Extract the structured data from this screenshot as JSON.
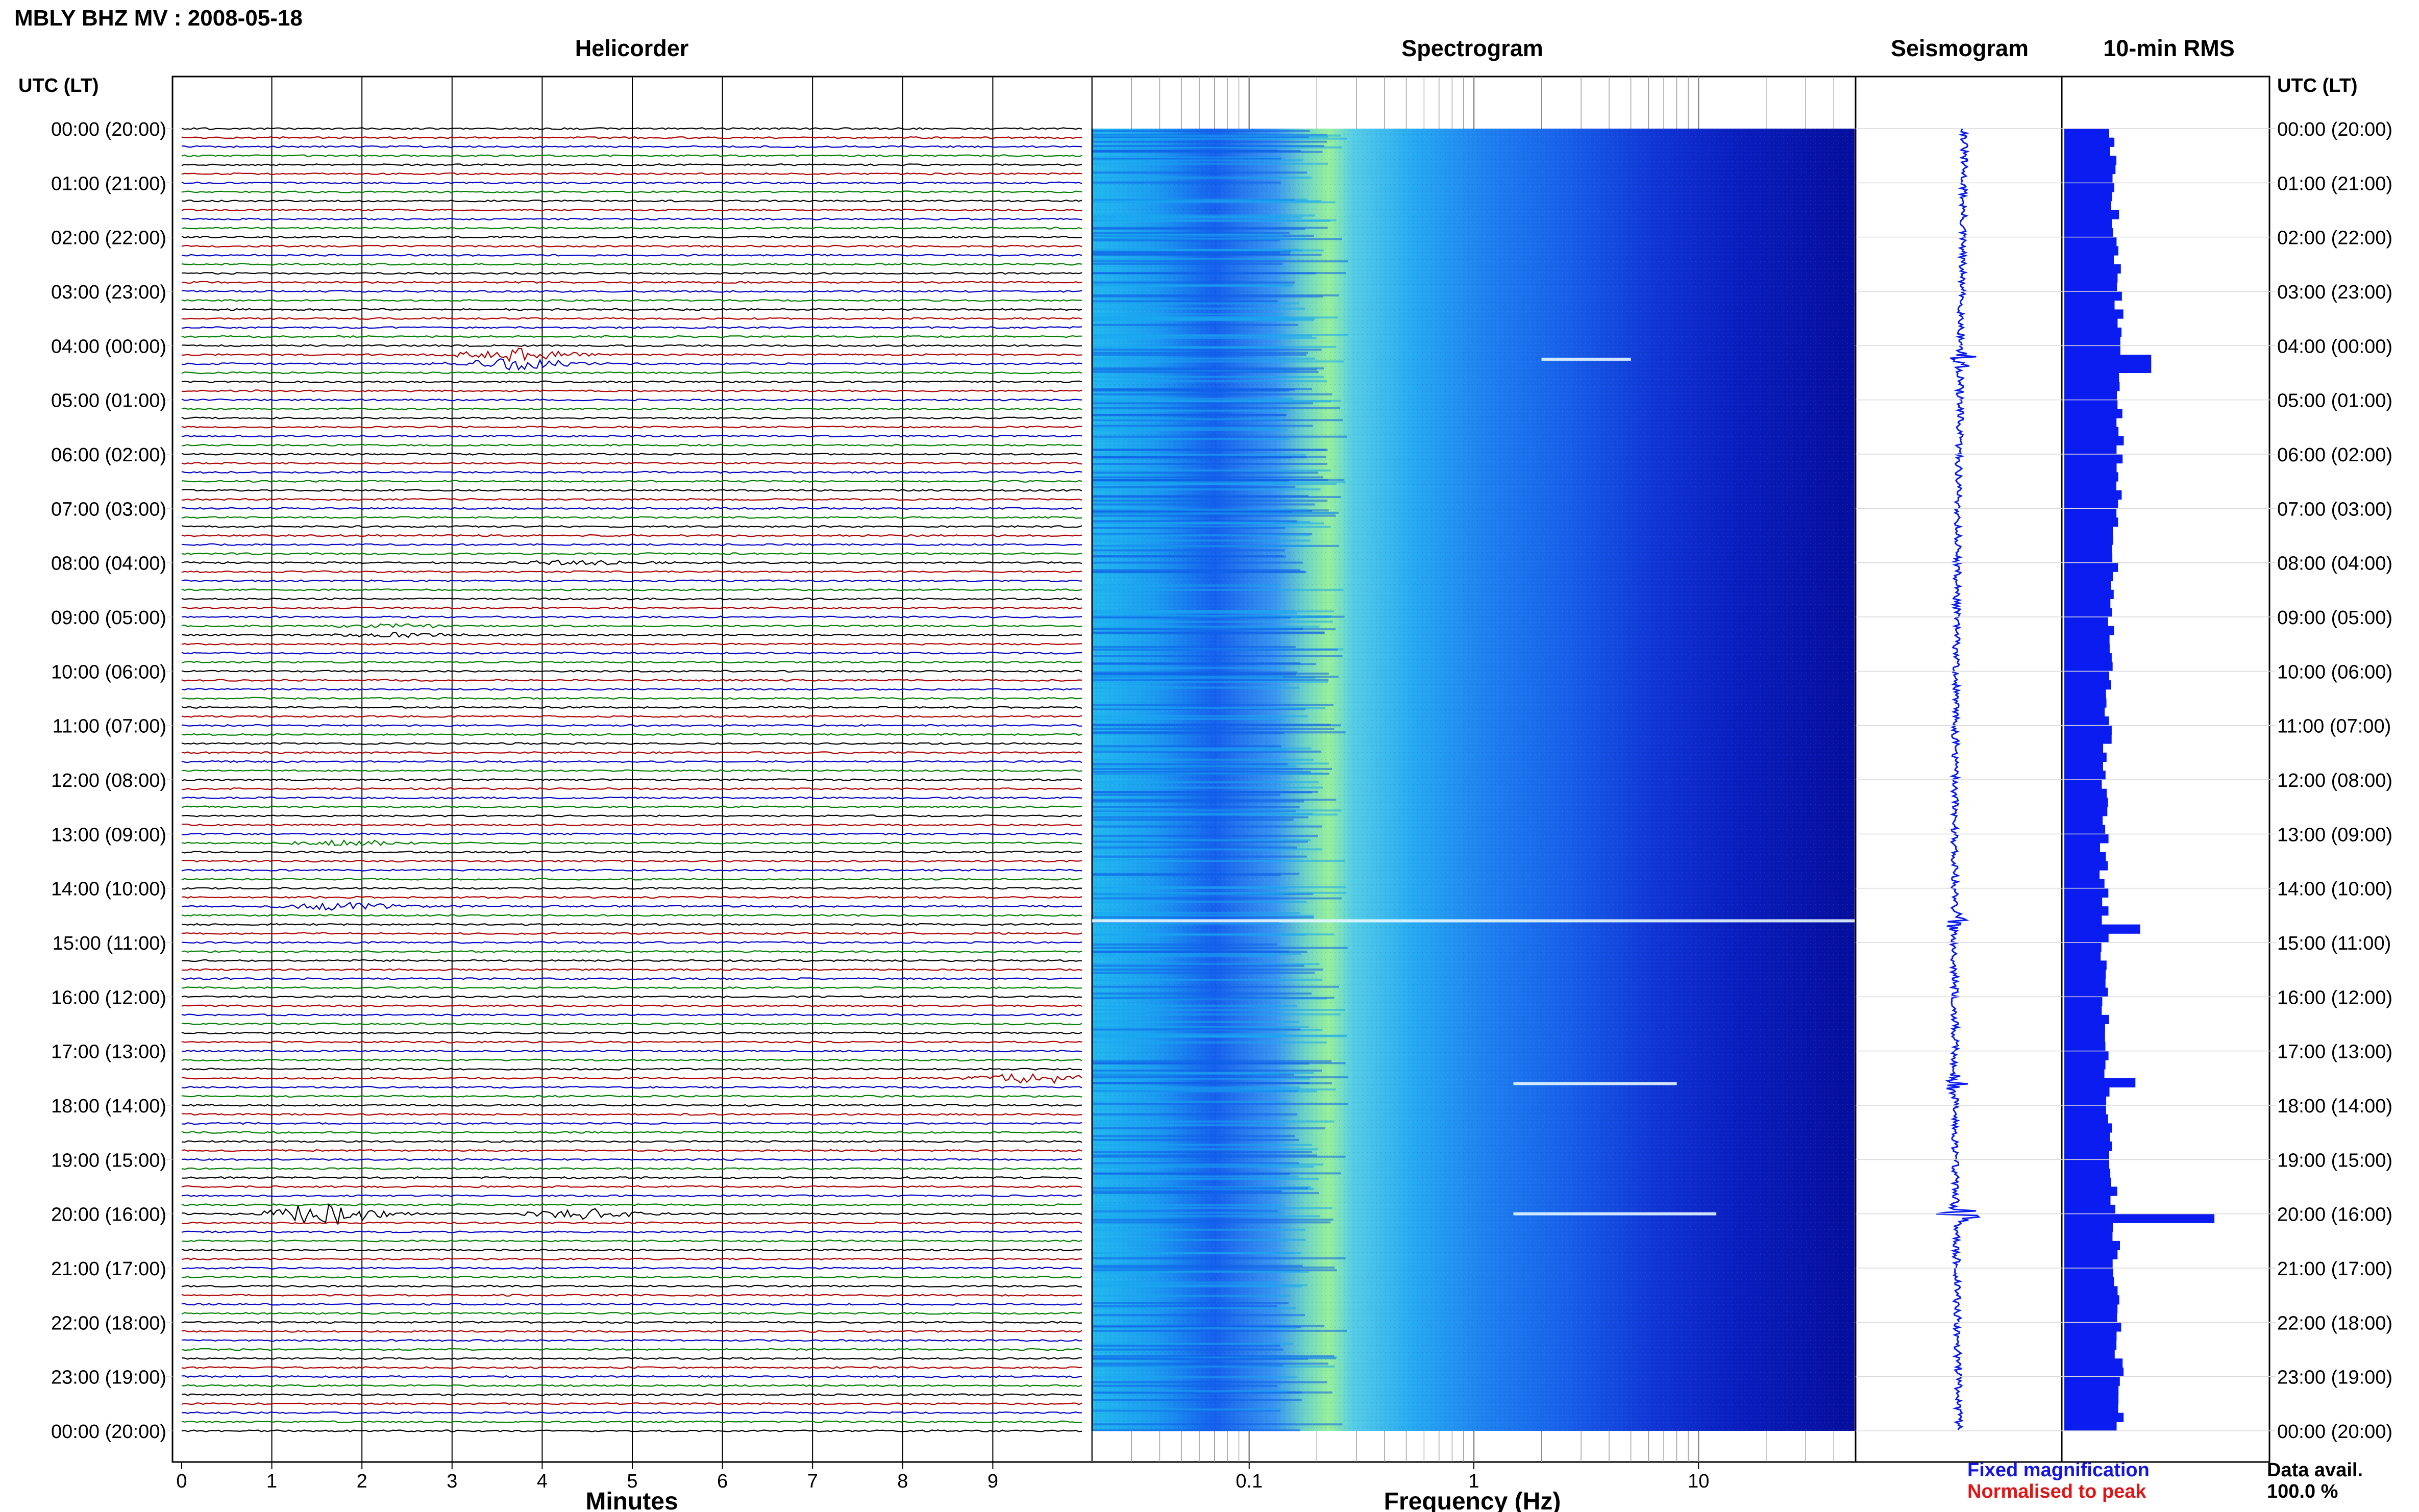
{
  "page_title": "MBLY BHZ MV : 2008-05-18",
  "footer": {
    "fixed_magnification": "Fixed magnification",
    "normalised_to_peak": "Normalised to peak",
    "data_avail_label": "Data avail.",
    "data_avail_value": "100.0 %"
  },
  "colors": {
    "trace_cycle": [
      "#000000",
      "#b00000",
      "#0000c8",
      "#008000"
    ],
    "bar_blue": "#0a1cf0",
    "fixed_magnification": "#1515e0",
    "normalised_to_peak": "#e01515",
    "spectrogram_colormap": "jet"
  },
  "chart_data": [
    {
      "type": "line",
      "title": "Helicorder",
      "xlabel": "Minutes",
      "ylabel": "UTC (LT)",
      "xlim": [
        0,
        10
      ],
      "x_ticks": [
        "0",
        "1",
        "2",
        "3",
        "4",
        "5",
        "6",
        "7",
        "8",
        "9"
      ],
      "y_ticks": [
        "00:00 (20:00)",
        "01:00 (21:00)",
        "02:00 (22:00)",
        "03:00 (23:00)",
        "04:00 (00:00)",
        "05:00 (01:00)",
        "06:00 (02:00)",
        "07:00 (03:00)",
        "08:00 (04:00)",
        "09:00 (05:00)",
        "10:00 (06:00)",
        "11:00 (07:00)",
        "12:00 (08:00)",
        "13:00 (09:00)",
        "14:00 (10:00)",
        "15:00 (11:00)",
        "16:00 (12:00)",
        "17:00 (13:00)",
        "18:00 (14:00)",
        "19:00 (15:00)",
        "20:00 (16:00)",
        "21:00 (17:00)",
        "22:00 (18:00)",
        "23:00 (19:00)",
        "00:00 (20:00)"
      ],
      "y_ticks_right": [
        "00:00 (20:00)",
        "01:00 (21:00)",
        "02:00 (22:00)",
        "03:00 (23:00)",
        "04:00 (00:00)",
        "05:00 (01:00)",
        "06:00 (02:00)",
        "07:00 (03:00)",
        "08:00 (04:00)",
        "09:00 (05:00)",
        "10:00 (06:00)",
        "11:00 (07:00)",
        "12:00 (08:00)",
        "13:00 (09:00)",
        "14:00 (10:00)",
        "15:00 (11:00)",
        "16:00 (12:00)",
        "17:00 (13:00)",
        "18:00 (14:00)",
        "19:00 (15:00)",
        "20:00 (16:00)",
        "21:00 (17:00)",
        "22:00 (18:00)",
        "23:00 (19:00)",
        "00:00 (20:00)"
      ],
      "lines_per_hour": 6,
      "grid": true,
      "events": [
        {
          "hour": 4.25,
          "minute": 3.7,
          "amplitude": 5
        },
        {
          "hour": 8.0,
          "minute": 4.4,
          "amplitude": 2
        },
        {
          "hour": 9.25,
          "minute": 2.4,
          "amplitude": 1.5
        },
        {
          "hour": 13.1,
          "minute": 1.9,
          "amplitude": 2
        },
        {
          "hour": 14.4,
          "minute": 1.8,
          "amplitude": 3
        },
        {
          "hour": 17.5,
          "minute": 9.5,
          "amplitude": 4
        },
        {
          "hour": 20.0,
          "minute": 1.6,
          "amplitude": 9
        },
        {
          "hour": 20.0,
          "minute": 4.5,
          "amplitude": 4
        }
      ]
    },
    {
      "type": "heatmap",
      "title": "Spectrogram",
      "xlabel": "Frequency (Hz)",
      "xscale": "log",
      "xlim": [
        0.02,
        50
      ],
      "x_ticks": [
        "0.1",
        "1",
        "10"
      ],
      "x_tick_values": [
        0.1,
        1,
        10
      ],
      "ylim_hours": [
        0,
        24
      ],
      "peak_frequency_hz": 0.25,
      "strong_lines": [
        {
          "hour": 4.25,
          "f_from": 2,
          "f_to": 5
        },
        {
          "hour": 14.6,
          "f_from": 0.02,
          "f_to": 50
        },
        {
          "hour": 17.6,
          "f_from": 1.5,
          "f_to": 8
        },
        {
          "hour": 20.0,
          "f_from": 1.5,
          "f_to": 12
        }
      ]
    },
    {
      "type": "line",
      "title": "Seismogram",
      "events_hours": [
        4.25,
        14.6,
        17.6,
        20.0
      ],
      "event_amplitudes": [
        3,
        2,
        2,
        5
      ]
    },
    {
      "type": "bar",
      "title": "10-min RMS",
      "orientation": "horizontal",
      "xlim": [
        0,
        1
      ],
      "highlight_values": [
        {
          "hour": 4.25,
          "value": 0.55
        },
        {
          "hour": 14.6,
          "value": 0.48
        },
        {
          "hour": 17.5,
          "value": 0.45
        },
        {
          "hour": 20.0,
          "value": 0.95
        }
      ],
      "baseline_value": 0.3
    }
  ]
}
